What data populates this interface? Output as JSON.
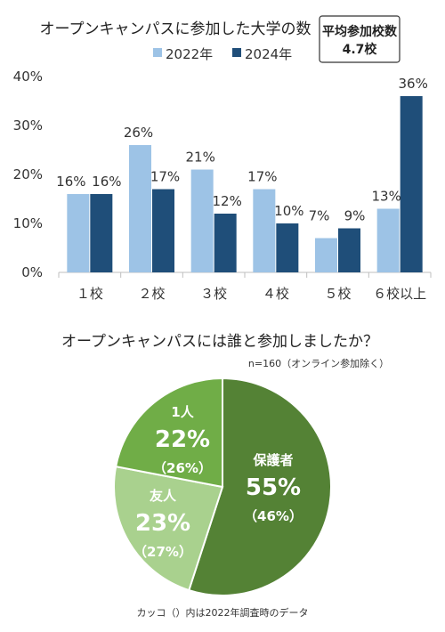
{
  "chart_data": [
    {
      "type": "bar",
      "title": "オープンキャンパスに参加した大学の数",
      "categories": [
        "１校",
        "２校",
        "３校",
        "４校",
        "５校",
        "６校以上"
      ],
      "series": [
        {
          "name": "2022年",
          "values": [
            16,
            26,
            21,
            17,
            7,
            13
          ],
          "labels": [
            "16%",
            "26%",
            "21%",
            "17%",
            "7%",
            "13%"
          ]
        },
        {
          "name": "2024年",
          "values": [
            16,
            17,
            12,
            10,
            9,
            36
          ],
          "labels": [
            "16%",
            "17%",
            "12%",
            "10%",
            "9%",
            "36%"
          ]
        }
      ],
      "yticks": [
        "0%",
        "10%",
        "20%",
        "30%",
        "40%"
      ],
      "ylim": [
        0,
        40
      ],
      "legend": "top-right",
      "grid": false,
      "colors": [
        "#9dc3e6",
        "#1f4e79"
      ],
      "badge": {
        "line1": "平均参加校数",
        "line2": "4.7校"
      }
    },
    {
      "type": "pie",
      "title": "オープンキャンパスには誰と参加しましたか？",
      "subtitle": "n=160（オンライン参加除く）",
      "slices": [
        {
          "name": "保護者",
          "value": 55,
          "label": "55%",
          "prev": "（46%）",
          "color": "#548235"
        },
        {
          "name": "友人",
          "value": 23,
          "label": "23%",
          "prev": "（27%）",
          "color": "#a9d18e"
        },
        {
          "name": "1人",
          "value": 22,
          "label": "22%",
          "prev": "（26%）",
          "color": "#70ad47"
        }
      ],
      "note": "カッコ（）内は2022年調査時のデータ"
    }
  ]
}
